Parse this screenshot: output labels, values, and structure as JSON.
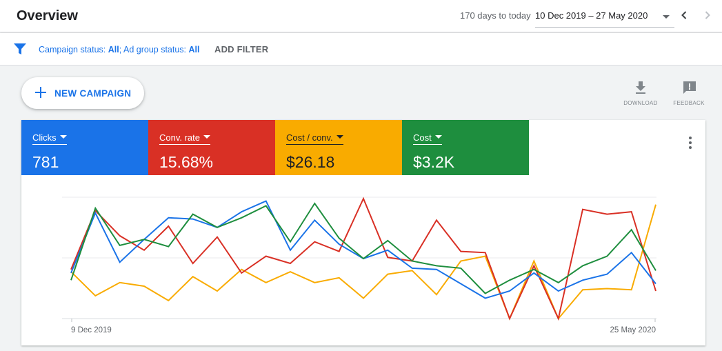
{
  "header": {
    "title": "Overview",
    "range_days": "170 days to today",
    "date_range": "10 Dec 2019 – 27 May 2020"
  },
  "filters": {
    "status_label_1": "Campaign status: ",
    "status_value_1": "All",
    "status_label_2": "; Ad group status: ",
    "status_value_2": "All",
    "add_filter": "ADD FILTER"
  },
  "actions": {
    "new_campaign": "NEW CAMPAIGN",
    "download": "DOWNLOAD",
    "feedback": "FEEDBACK"
  },
  "metrics": [
    {
      "label": "Clicks",
      "value": "781",
      "color": "#1a73e8"
    },
    {
      "label": "Conv. rate",
      "value": "15.68%",
      "color": "#d93025"
    },
    {
      "label": "Cost / conv.",
      "value": "$26.18",
      "color": "#f9ab00"
    },
    {
      "label": "Cost",
      "value": "$3.2K",
      "color": "#1e8e3e"
    }
  ],
  "chart_data": {
    "type": "line",
    "x_start_label": "9 Dec 2019",
    "x_end_label": "25 May 2020",
    "y_scale": "unlabeled, normalized 0-100",
    "grid": "horizontal",
    "series": [
      {
        "metric": "Clicks",
        "color": "#1a73e8",
        "values": [
          38,
          88,
          47,
          66,
          84,
          83,
          76,
          89,
          98,
          57,
          82,
          62,
          50,
          57,
          42,
          41,
          29,
          17,
          23,
          38,
          23,
          32,
          37,
          55,
          29
        ]
      },
      {
        "metric": "Conv. rate",
        "color": "#d93025",
        "values": [
          41,
          90,
          69,
          57,
          77,
          46,
          68,
          38,
          52,
          46,
          64,
          56,
          100,
          51,
          48,
          82,
          56,
          55,
          0,
          44,
          0,
          91,
          87,
          89,
          23
        ]
      },
      {
        "metric": "Cost / conv.",
        "color": "#f9ab00",
        "values": [
          39,
          19,
          30,
          27,
          15,
          35,
          23,
          41,
          30,
          39,
          30,
          34,
          17,
          37,
          40,
          20,
          48,
          52,
          0,
          48,
          0,
          24,
          25,
          24,
          95
        ]
      },
      {
        "metric": "Cost",
        "color": "#1e8e3e",
        "values": [
          32,
          92,
          61,
          66,
          60,
          87,
          76,
          84,
          94,
          64,
          96,
          67,
          50,
          65,
          48,
          44,
          42,
          21,
          32,
          41,
          30,
          44,
          52,
          74,
          40
        ]
      }
    ]
  }
}
